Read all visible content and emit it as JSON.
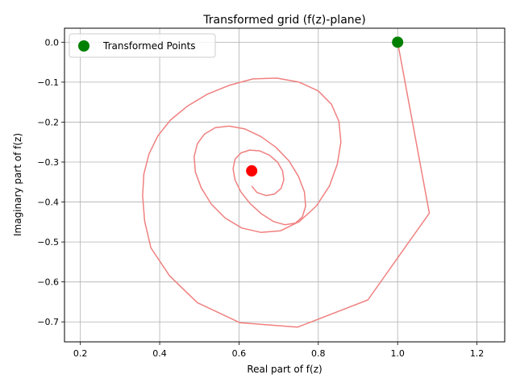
{
  "chart_data": {
    "type": "line",
    "title": "Transformed grid (f(z)-plane)",
    "xlabel": "Real part of f(z)",
    "ylabel": "Imaginary part of f(z)",
    "xlim": [
      0.16,
      1.27
    ],
    "ylim": [
      -0.75,
      0.035
    ],
    "xticks": [
      0.2,
      0.4,
      0.6,
      0.8,
      1.0,
      1.2
    ],
    "xtick_labels": [
      "0.2",
      "0.4",
      "0.6",
      "0.8",
      "1.0",
      "1.2"
    ],
    "yticks": [
      0.0,
      -0.1,
      -0.2,
      -0.3,
      -0.4,
      -0.5,
      -0.6,
      -0.7
    ],
    "ytick_labels": [
      "0.0",
      "−0.1",
      "−0.2",
      "−0.3",
      "−0.4",
      "−0.5",
      "−0.6",
      "−0.7"
    ],
    "grid": true,
    "legend": {
      "placement": "top-left",
      "entries": [
        "Transformed Points"
      ]
    },
    "series": [
      {
        "kind": "spiral-line",
        "color": "#f08080",
        "x": [
          1.0,
          1.08,
          0.925,
          0.748,
          0.602,
          0.495,
          0.425,
          0.378,
          0.362,
          0.357,
          0.36,
          0.373,
          0.395,
          0.427,
          0.47,
          0.52,
          0.575,
          0.635,
          0.695,
          0.752,
          0.8,
          0.833,
          0.852,
          0.857,
          0.848,
          0.828,
          0.795,
          0.752,
          0.705,
          0.655,
          0.607,
          0.565,
          0.53,
          0.505,
          0.49,
          0.487,
          0.495,
          0.513,
          0.54,
          0.575,
          0.615,
          0.655,
          0.693,
          0.726,
          0.75,
          0.765,
          0.768,
          0.76,
          0.742,
          0.716,
          0.687,
          0.657,
          0.628,
          0.605,
          0.59,
          0.585,
          0.59,
          0.605,
          0.627,
          0.652,
          0.677,
          0.697,
          0.71,
          0.713,
          0.706,
          0.69,
          0.668,
          0.645,
          0.632
        ],
        "y": [
          0.0,
          -0.428,
          -0.645,
          -0.713,
          -0.702,
          -0.652,
          -0.585,
          -0.515,
          -0.448,
          -0.385,
          -0.33,
          -0.28,
          -0.235,
          -0.195,
          -0.16,
          -0.13,
          -0.108,
          -0.092,
          -0.09,
          -0.1,
          -0.122,
          -0.155,
          -0.198,
          -0.25,
          -0.305,
          -0.36,
          -0.41,
          -0.449,
          -0.472,
          -0.476,
          -0.465,
          -0.44,
          -0.405,
          -0.365,
          -0.325,
          -0.286,
          -0.254,
          -0.23,
          -0.214,
          -0.21,
          -0.217,
          -0.236,
          -0.263,
          -0.297,
          -0.336,
          -0.375,
          -0.41,
          -0.437,
          -0.453,
          -0.457,
          -0.449,
          -0.43,
          -0.404,
          -0.375,
          -0.345,
          -0.317,
          -0.293,
          -0.277,
          -0.27,
          -0.272,
          -0.283,
          -0.3,
          -0.322,
          -0.345,
          -0.366,
          -0.38,
          -0.384,
          -0.376,
          -0.36
        ]
      },
      {
        "kind": "point",
        "name": "Transformed Points",
        "color": "#008000",
        "x": [
          1.0
        ],
        "y": [
          0.0
        ]
      },
      {
        "kind": "point",
        "color": "#ff0000",
        "x": [
          0.632
        ],
        "y": [
          -0.322
        ]
      }
    ]
  }
}
